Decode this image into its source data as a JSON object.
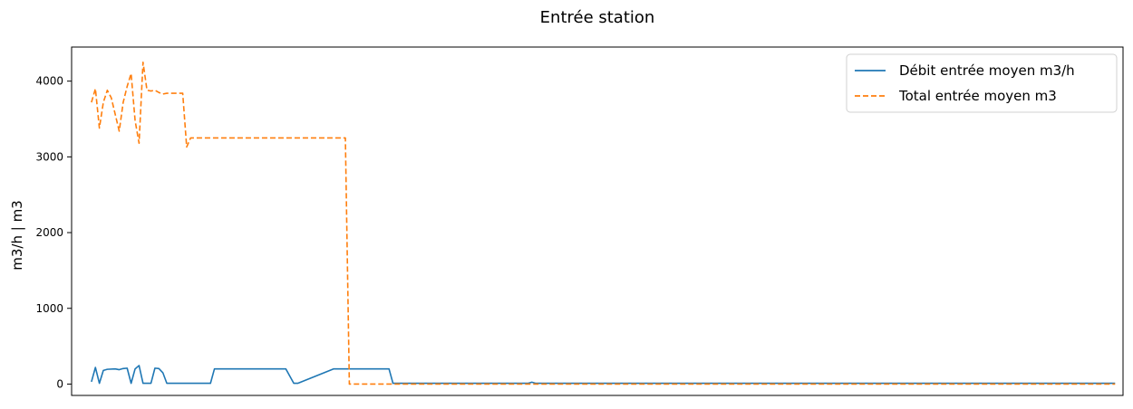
{
  "chart_data": {
    "type": "line",
    "title": "Entrée station",
    "xlabel": "",
    "ylabel": "m3/h | m3",
    "ylim": [
      -150,
      4450
    ],
    "xlim": [
      -5,
      260
    ],
    "yticks": [
      0,
      1000,
      2000,
      3000,
      4000
    ],
    "ytick_labels": [
      "0",
      "1000",
      "2000",
      "3000",
      "4000"
    ],
    "grid": false,
    "legend_position": "top-right",
    "series": [
      {
        "name": "Débit entrée moyen m3/h",
        "color": "#1f77b4",
        "style": "solid",
        "x": [
          0,
          1,
          2,
          3,
          4,
          6,
          7,
          8,
          9,
          10,
          11,
          12,
          13,
          14,
          15,
          16,
          17,
          18,
          19,
          20,
          29,
          30,
          31,
          47,
          48,
          49,
          51,
          52,
          61,
          62,
          63,
          64,
          65,
          75,
          76,
          77,
          100,
          110,
          111,
          112,
          150,
          180,
          200,
          220,
          230,
          240,
          250,
          258
        ],
        "y": [
          30,
          220,
          10,
          180,
          195,
          200,
          190,
          205,
          210,
          10,
          200,
          245,
          10,
          10,
          10,
          210,
          205,
          150,
          10,
          10,
          10,
          10,
          200,
          200,
          200,
          200,
          10,
          10,
          200,
          200,
          200,
          200,
          200,
          200,
          10,
          10,
          10,
          10,
          25,
          10,
          10,
          10,
          10,
          10,
          10,
          10,
          10,
          10
        ]
      },
      {
        "name": "Total entrée moyen m3",
        "color": "#ff7f0e",
        "style": "dashed",
        "x": [
          0,
          1,
          2,
          3,
          4,
          5,
          6,
          7,
          8,
          9,
          10,
          11,
          12,
          13,
          14,
          15,
          16,
          17,
          18,
          19,
          20,
          21,
          22,
          23,
          24,
          25,
          26,
          64,
          65,
          258
        ],
        "y": [
          3720,
          3900,
          3380,
          3720,
          3880,
          3780,
          3560,
          3340,
          3720,
          3930,
          4100,
          3480,
          3180,
          4250,
          3880,
          3870,
          3880,
          3850,
          3830,
          3840,
          3840,
          3840,
          3840,
          3840,
          3130,
          3250,
          3250,
          3250,
          0,
          0
        ]
      }
    ]
  }
}
